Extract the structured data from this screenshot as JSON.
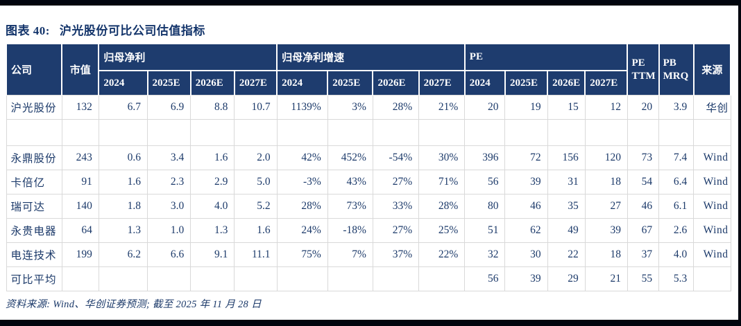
{
  "title": {
    "prefix": "图表 40:",
    "text": "沪光股份可比公司估值指标"
  },
  "table": {
    "headers": {
      "company": "公司",
      "market_cap": "市值",
      "groups": [
        {
          "label": "归母净利",
          "years": [
            "2024",
            "2025E",
            "2026E",
            "2027E"
          ]
        },
        {
          "label": "归母净利增速",
          "years": [
            "2024",
            "2025E",
            "2026E",
            "2027E"
          ]
        },
        {
          "label": "PE",
          "years": [
            "2024",
            "2025E",
            "2026E",
            "2027E"
          ]
        }
      ],
      "pe_ttm": {
        "line1": "PE",
        "line2": "TTM"
      },
      "pb_mrq": {
        "line1": "PB",
        "line2": "MRQ"
      },
      "source": "来源"
    },
    "rows": [
      {
        "company": "沪光股份",
        "cells": [
          "132",
          "6.7",
          "6.9",
          "8.8",
          "10.7",
          "1139%",
          "3%",
          "28%",
          "21%",
          "20",
          "19",
          "15",
          "12",
          "20",
          "3.9"
        ],
        "source": "华创",
        "tall": false
      },
      {
        "company": "",
        "cells": [
          "",
          "",
          "",
          "",
          "",
          "",
          "",
          "",
          "",
          "",
          "",
          "",
          "",
          "",
          ""
        ],
        "source": "",
        "tall": true
      },
      {
        "company": "永鼎股份",
        "cells": [
          "243",
          "0.6",
          "3.4",
          "1.6",
          "2.0",
          "42%",
          "452%",
          "-54%",
          "30%",
          "396",
          "72",
          "156",
          "120",
          "73",
          "7.4"
        ],
        "source": "Wind",
        "tall": false
      },
      {
        "company": "卡倍亿",
        "cells": [
          "91",
          "1.6",
          "2.3",
          "2.9",
          "5.0",
          "-3%",
          "43%",
          "27%",
          "71%",
          "56",
          "39",
          "31",
          "18",
          "54",
          "6.4"
        ],
        "source": "Wind",
        "tall": false
      },
      {
        "company": "瑞可达",
        "cells": [
          "140",
          "1.8",
          "3.0",
          "4.0",
          "5.2",
          "28%",
          "73%",
          "33%",
          "28%",
          "80",
          "46",
          "35",
          "27",
          "46",
          "6.1"
        ],
        "source": "Wind",
        "tall": false
      },
      {
        "company": "永贵电器",
        "cells": [
          "64",
          "1.3",
          "1.0",
          "1.3",
          "1.6",
          "24%",
          "-18%",
          "27%",
          "25%",
          "51",
          "62",
          "49",
          "39",
          "67",
          "2.6"
        ],
        "source": "Wind",
        "tall": false
      },
      {
        "company": "电连技术",
        "cells": [
          "199",
          "6.2",
          "6.6",
          "9.1",
          "11.1",
          "75%",
          "7%",
          "37%",
          "22%",
          "32",
          "30",
          "22",
          "18",
          "37",
          "4.0"
        ],
        "source": "Wind",
        "tall": false
      },
      {
        "company": "可比平均",
        "cells": [
          "",
          "",
          "",
          "",
          "",
          "",
          "",
          "",
          "",
          "56",
          "39",
          "29",
          "21",
          "55",
          "5.3"
        ],
        "source": "",
        "tall": false
      }
    ]
  },
  "footer": {
    "text": "资料来源: Wind、华创证券预测; 截至 2025 年 11 月 28 日"
  },
  "colors": {
    "header_bg": "#1e3c6e",
    "text_navy": "#1c3a6a",
    "grid_line": "#d9d9d9",
    "frame_bar": "#01050e"
  }
}
